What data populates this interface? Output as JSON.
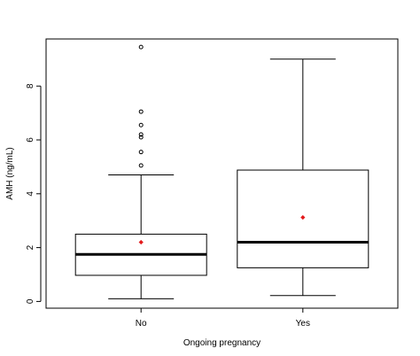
{
  "chart_data": {
    "type": "boxplot",
    "title": "",
    "xlabel": "Ongoing pregnancy",
    "ylabel": "AMH (ng/mL)",
    "ylim": [
      -0.25,
      9.75
    ],
    "yticks": [
      0,
      2,
      4,
      6,
      8
    ],
    "grid": false,
    "legend": "none",
    "categories": [
      "No",
      "Yes"
    ],
    "boxes": [
      {
        "category": "No",
        "whisker_low": 0.1,
        "q1": 0.97,
        "median": 1.75,
        "q3": 2.5,
        "whisker_high": 4.7,
        "mean": 2.2,
        "outliers": [
          5.05,
          5.55,
          6.1,
          6.2,
          6.55,
          7.05,
          9.45
        ]
      },
      {
        "category": "Yes",
        "whisker_low": 0.22,
        "q1": 1.25,
        "median": 2.2,
        "q3": 4.88,
        "whisker_high": 9.0,
        "mean": 3.12,
        "outliers": []
      }
    ],
    "colors": {
      "box": "#000000",
      "mean_marker": "#e31a1c"
    }
  }
}
